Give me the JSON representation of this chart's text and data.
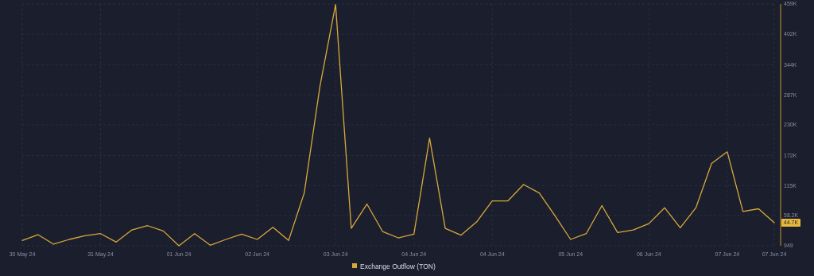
{
  "chart_data": {
    "type": "line",
    "categories": [
      "30 May 24",
      null,
      null,
      null,
      null,
      "31 May 24",
      null,
      null,
      null,
      null,
      "01 Jun 24",
      null,
      null,
      null,
      null,
      "02 Jun 24",
      null,
      null,
      null,
      null,
      "03 Jun 24",
      null,
      null,
      null,
      null,
      "04 Jun 24",
      null,
      null,
      null,
      null,
      "04 Jun 24",
      null,
      null,
      null,
      null,
      "05 Jun 24",
      null,
      null,
      null,
      null,
      "06 Jun 24",
      null,
      null,
      null,
      null,
      "07 Jun 24",
      null,
      null,
      "07 Jun 24"
    ],
    "series": [
      {
        "name": "Exchange Outflow (TON)",
        "color": "#d9a93a",
        "values": [
          11000,
          22000,
          4000,
          13000,
          20000,
          24000,
          8000,
          31000,
          39000,
          29000,
          949,
          24000,
          2000,
          13000,
          23000,
          13000,
          36000,
          11000,
          101000,
          303000,
          458000,
          34000,
          80000,
          28000,
          16000,
          23000,
          205000,
          34000,
          21000,
          46000,
          86000,
          86000,
          117000,
          101000,
          58000,
          13000,
          24000,
          77000,
          26000,
          31000,
          43000,
          73000,
          35000,
          73000,
          157000,
          179000,
          66000,
          71000,
          44700
        ]
      }
    ],
    "ylim": [
      949,
      459000
    ],
    "yticks": [
      949,
      {
        "value": 58200,
        "label": "58.2K"
      },
      {
        "value": 115000,
        "label": "115K"
      },
      {
        "value": 172000,
        "label": "172K"
      },
      {
        "value": 230000,
        "label": "230K"
      },
      {
        "value": 287000,
        "label": "287K"
      },
      {
        "value": 344000,
        "label": "344K"
      },
      {
        "value": 402000,
        "label": "402K"
      },
      {
        "value": 459000,
        "label": "459K"
      }
    ],
    "grid": true,
    "legend": "bottom",
    "marker": "none",
    "line_style": "solid",
    "annotations": [
      "44.7K"
    ]
  }
}
